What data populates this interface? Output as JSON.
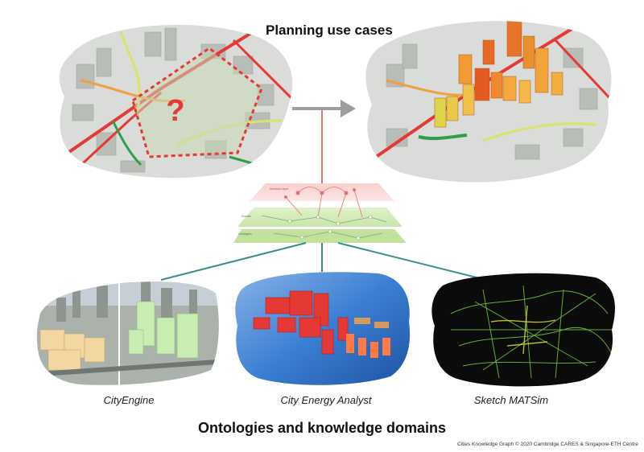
{
  "header": {
    "title_bold": "Planning",
    "title_rest": " use cases"
  },
  "planning": {
    "question_mark": "?"
  },
  "layers": {
    "top_label": "Semantic layer",
    "mid_label": "Domain",
    "bottom_label": "Ontologies"
  },
  "domains": [
    {
      "caption": "CityEngine"
    },
    {
      "caption": "City Energy Analyst"
    },
    {
      "caption": "Sketch MATSim"
    }
  ],
  "footer": {
    "title": "Ontologies and knowledge domains",
    "credit": "Cities Knowledge Graph © 2020 Cambridge CARES & Singapore-ETH Centre"
  }
}
